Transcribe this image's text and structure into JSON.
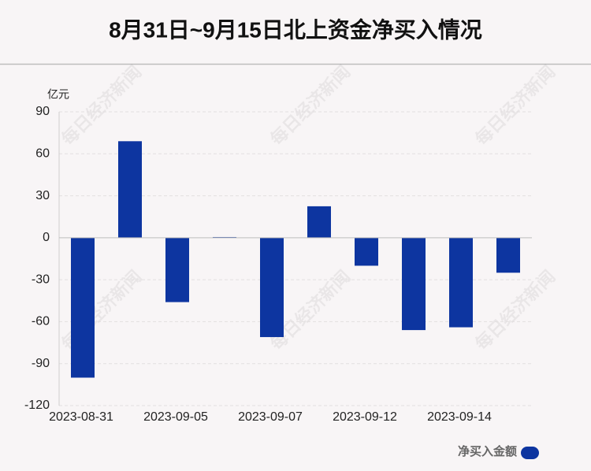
{
  "chart_data": {
    "type": "bar",
    "title": "8月31日~9月15日北上资金净买入情况",
    "y_unit": "亿元",
    "watermark": "每日经济新闻",
    "categories": [
      "2023-08-31",
      null,
      "2023-09-05",
      null,
      "2023-09-07",
      null,
      "2023-09-12",
      null,
      "2023-09-14",
      null
    ],
    "series": [
      {
        "name": "净买入金额",
        "color": "#0d35a0",
        "values": [
          -100,
          69,
          -46,
          0.5,
          -71,
          22.5,
          -20,
          -66,
          -64,
          -25
        ]
      }
    ],
    "ylim": [
      -120,
      90
    ],
    "yticks": [
      -120,
      -90,
      -60,
      -30,
      0,
      30,
      60,
      90
    ],
    "grid": true,
    "legend": "bottom-right"
  }
}
